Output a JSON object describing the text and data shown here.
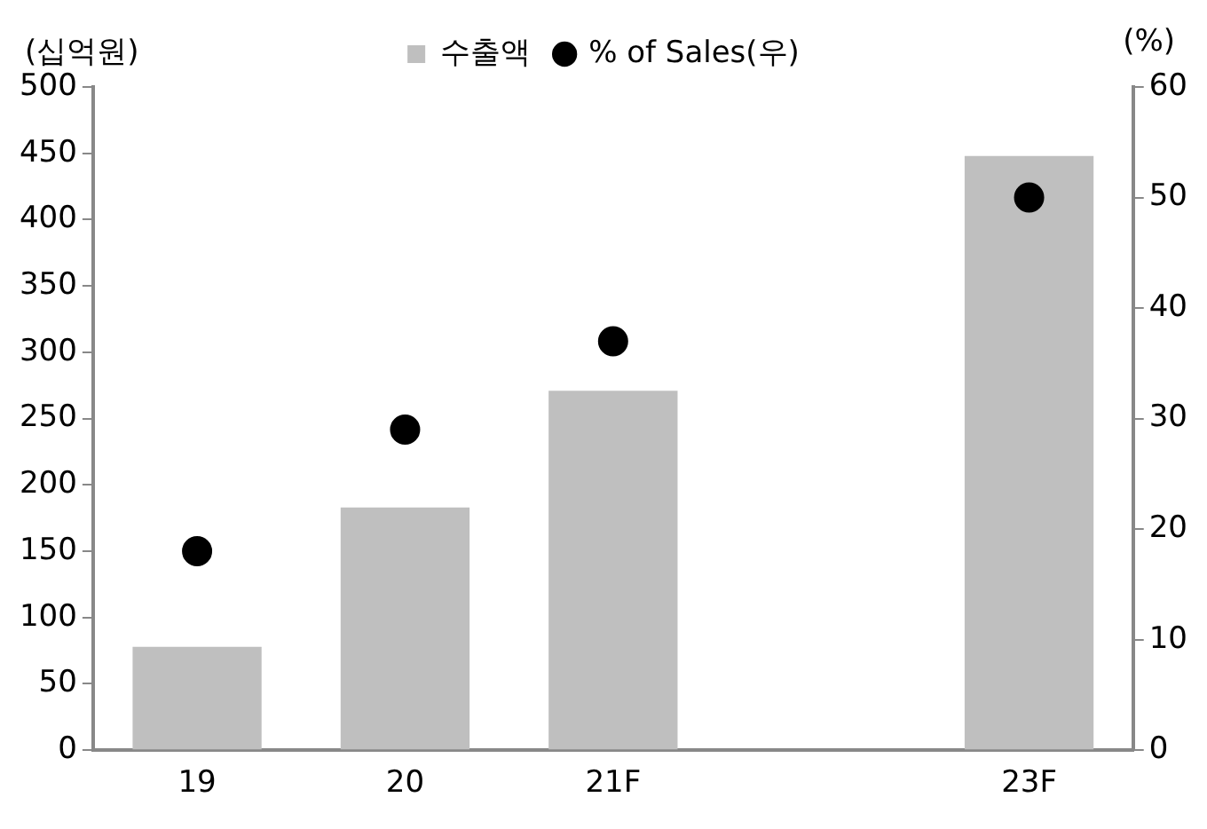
{
  "chart_data": {
    "type": "bar",
    "ylabel": "(십억원)",
    "y2label": "(%)",
    "categories": [
      "19",
      "20",
      "21F",
      null,
      "23F"
    ],
    "series": [
      {
        "name": "수출액",
        "color": "#bfbfbf",
        "values": [
          78,
          183,
          271,
          null,
          448
        ]
      },
      {
        "name": "% of Sales(우)",
        "type": "scatter",
        "axis": "y2",
        "color": "#000000",
        "marker": "circle",
        "values": [
          18,
          29,
          37,
          null,
          50
        ]
      }
    ],
    "ylim": [
      0,
      500
    ],
    "yticks": [
      0,
      50,
      100,
      150,
      200,
      250,
      300,
      350,
      400,
      450,
      500
    ],
    "y2lim": [
      0,
      60
    ],
    "y2ticks": [
      0,
      10,
      20,
      30,
      40,
      50,
      60
    ],
    "grid": false,
    "legend": "top"
  }
}
